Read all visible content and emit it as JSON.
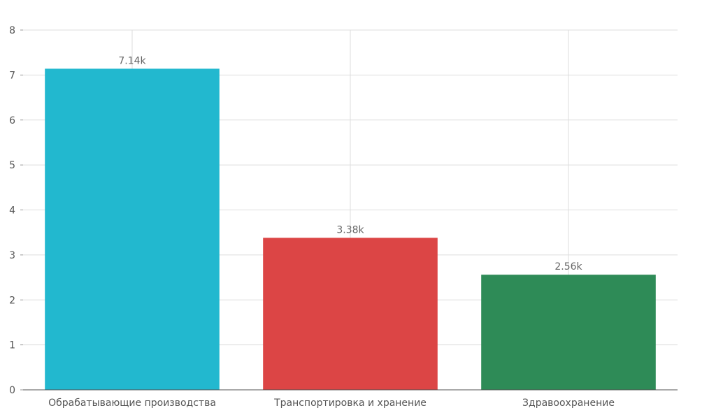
{
  "chart_data": {
    "type": "bar",
    "title": "",
    "xlabel": "",
    "ylabel": "",
    "ylim": [
      0,
      8
    ],
    "yticks": [
      "0",
      "1",
      "2",
      "3",
      "4",
      "5",
      "6",
      "7",
      "8"
    ],
    "grid": true,
    "categories": [
      "Обрабатывающие производства",
      "Транспортировка и хранение",
      "Здравоохранение"
    ],
    "values": [
      7.14,
      3.38,
      2.56
    ],
    "data_labels": [
      "7.14k",
      "3.38k",
      "2.56k"
    ],
    "colors": [
      "#22b8cf",
      "#dc4545",
      "#2e8b57"
    ]
  }
}
